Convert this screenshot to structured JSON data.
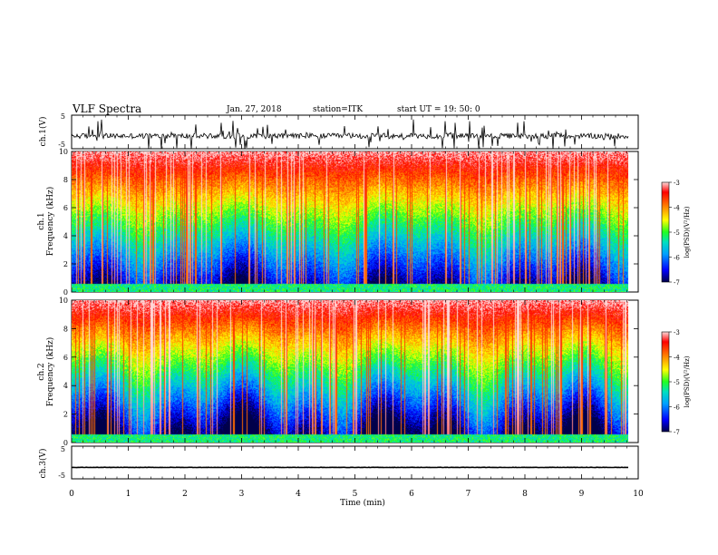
{
  "header": {
    "title": "VLF Spectra",
    "date": "Jan. 27, 2018",
    "station": "station=ITK",
    "start": "start UT =  19: 50: 0"
  },
  "colorbar": {
    "label": "log(PSD)(V²/Hz)",
    "ticks": [
      "-3",
      "-4",
      "-5",
      "-6",
      "-7"
    ],
    "colors": [
      "#00004a",
      "#0000ff",
      "#00a0ff",
      "#00e0c0",
      "#20ff20",
      "#ffff00",
      "#ff8000",
      "#ff0000",
      "#ffffff"
    ]
  },
  "chart_data": [
    {
      "type": "line",
      "name": "ch1-waveform",
      "ylabel": "ch.1(V)",
      "ylim": [
        -5,
        5
      ],
      "yticks": [
        "5",
        "-5"
      ],
      "xlim": [
        0,
        10
      ],
      "baseline_v": -1.2,
      "note_values": "noisy waveform centred near -1.2 V with frequent spikes reaching about ±5 V"
    },
    {
      "type": "heatmap",
      "name": "ch1-spectrogram",
      "ylabel_line1": "ch.1",
      "ylabel_line2": "Frequency (kHz)",
      "ylim": [
        0,
        10
      ],
      "yticks": [
        "0",
        "2",
        "4",
        "6",
        "8",
        "10"
      ],
      "xlim": [
        0,
        9.83
      ],
      "zlim": [
        -7,
        -3
      ]
    },
    {
      "type": "heatmap",
      "name": "ch2-spectrogram",
      "ylabel_line1": "ch.2",
      "ylabel_line2": "Frequency (kHz)",
      "ylim": [
        0,
        10
      ],
      "yticks": [
        "0",
        "2",
        "4",
        "6",
        "8",
        "10"
      ],
      "xlim": [
        0,
        9.83
      ],
      "zlim": [
        -7,
        -3
      ]
    },
    {
      "type": "line",
      "name": "ch3-waveform",
      "ylabel": "ch.3(V)",
      "ylim": [
        -5,
        5
      ],
      "yticks": [
        "5",
        "-5"
      ],
      "xlim": [
        0,
        10
      ],
      "baseline_v": -1.5
    }
  ],
  "xaxis": {
    "label": "Time (min)",
    "ticks": [
      "0",
      "1",
      "2",
      "3",
      "4",
      "5",
      "6",
      "7",
      "8",
      "9",
      "10"
    ]
  }
}
